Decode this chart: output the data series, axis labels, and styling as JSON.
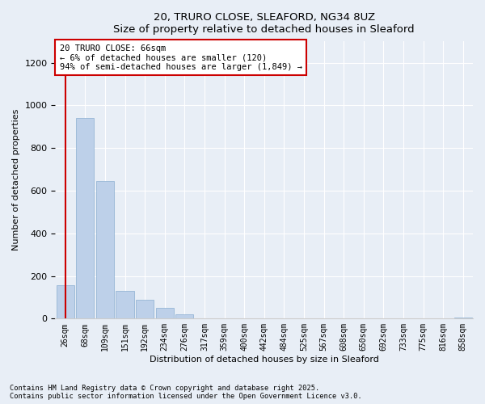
{
  "title_line1": "20, TRURO CLOSE, SLEAFORD, NG34 8UZ",
  "title_line2": "Size of property relative to detached houses in Sleaford",
  "xlabel": "Distribution of detached houses by size in Sleaford",
  "ylabel": "Number of detached properties",
  "categories": [
    "26sqm",
    "68sqm",
    "109sqm",
    "151sqm",
    "192sqm",
    "234sqm",
    "276sqm",
    "317sqm",
    "359sqm",
    "400sqm",
    "442sqm",
    "484sqm",
    "525sqm",
    "567sqm",
    "608sqm",
    "650sqm",
    "692sqm",
    "733sqm",
    "775sqm",
    "816sqm",
    "858sqm"
  ],
  "bar_values": [
    155,
    940,
    645,
    130,
    90,
    50,
    20,
    0,
    0,
    0,
    0,
    0,
    0,
    0,
    0,
    0,
    0,
    0,
    0,
    0,
    5
  ],
  "bar_color": "#bdd0e9",
  "bar_edge_color": "#8aaed0",
  "annotation_text": "20 TRURO CLOSE: 66sqm\n← 6% of detached houses are smaller (120)\n94% of semi-detached houses are larger (1,849) →",
  "annotation_box_color": "#ffffff",
  "annotation_border_color": "#cc0000",
  "property_line_x": 0,
  "property_line_color": "#cc0000",
  "ylim": [
    0,
    1300
  ],
  "yticks": [
    0,
    200,
    400,
    600,
    800,
    1000,
    1200
  ],
  "background_color": "#e8eef6",
  "grid_color": "#ffffff",
  "footer_text": "Contains HM Land Registry data © Crown copyright and database right 2025.\nContains public sector information licensed under the Open Government Licence v3.0.",
  "fig_width": 6.0,
  "fig_height": 5.0
}
